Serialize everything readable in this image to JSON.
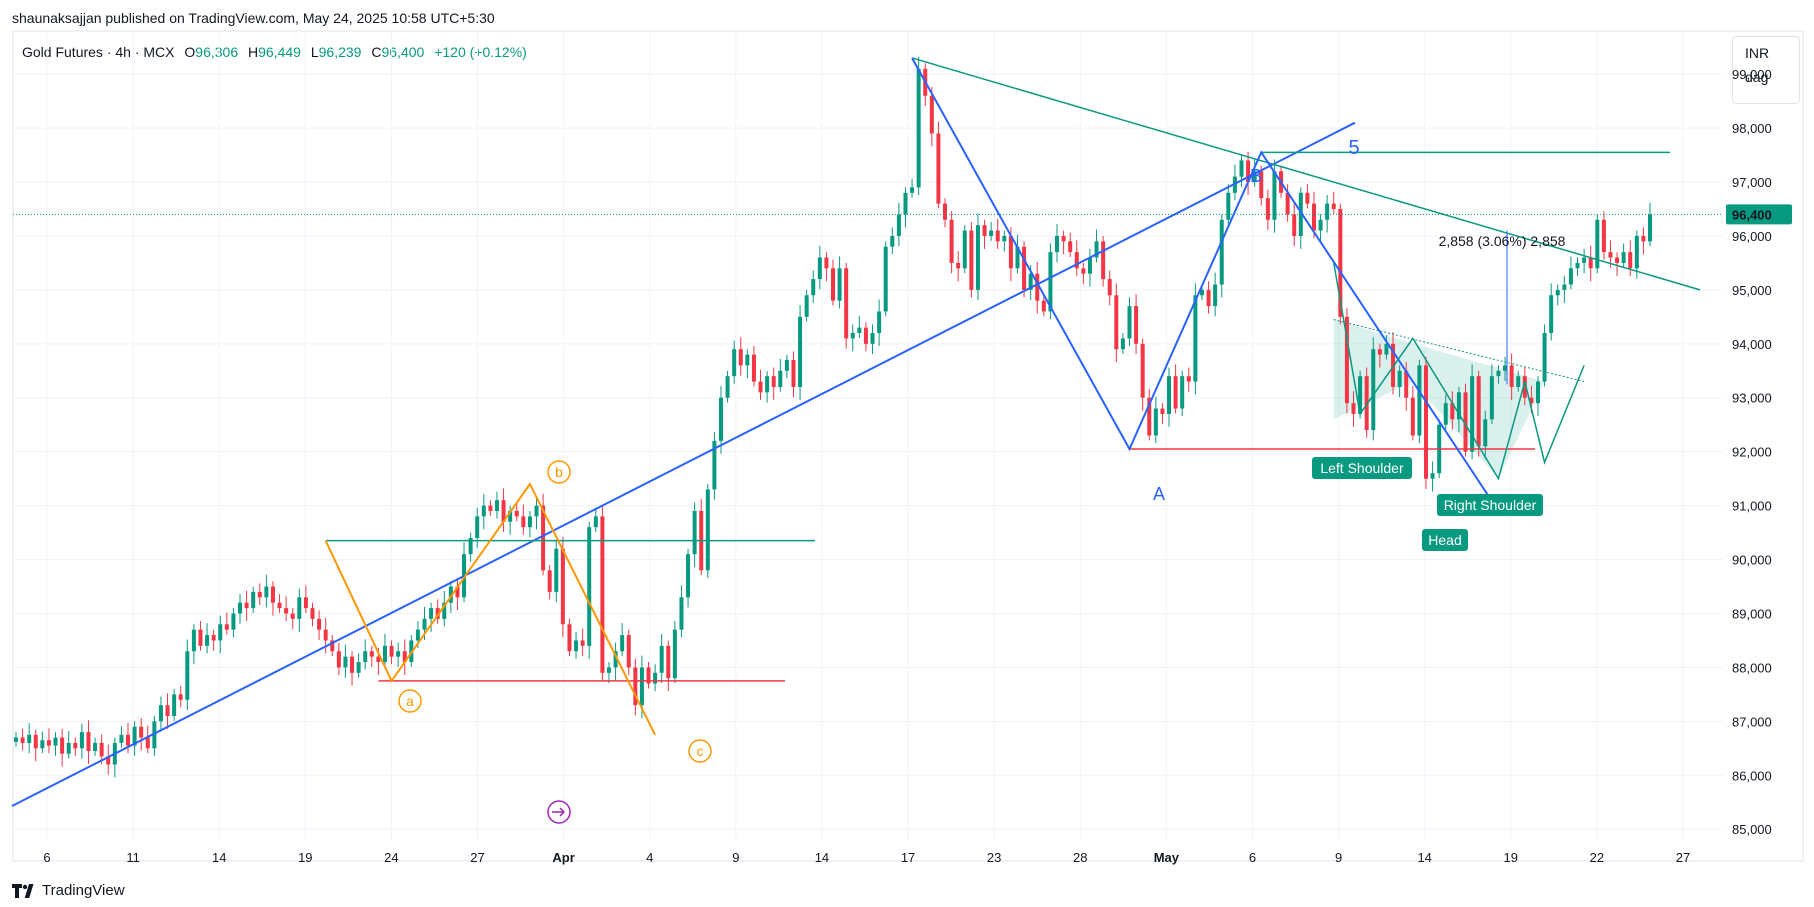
{
  "publisher": "shaunaksajjan published on TradingView.com, May 24, 2025 10:58 UTC+5:30",
  "header": {
    "symbol": "Gold Futures · 4h · MCX",
    "o_label": "O",
    "o": "96,306",
    "h_label": "H",
    "h": "96,449",
    "l_label": "L",
    "l": "96,239",
    "c_label": "C",
    "c": "96,400",
    "change": "+120 (+0.12%)"
  },
  "side": {
    "currency": "INR",
    "unit": "dag"
  },
  "footer": {
    "brand": "TradingView"
  },
  "colors": {
    "up": "#089981",
    "down": "#f23645",
    "blue": "#2962ff",
    "orange": "#ff9800",
    "teal": "#089981"
  },
  "chart_data": {
    "type": "candlestick",
    "ylim": [
      84800,
      99800
    ],
    "y_ticks": [
      85000,
      86000,
      87000,
      88000,
      89000,
      90000,
      91000,
      92000,
      93000,
      94000,
      95000,
      96000,
      97000,
      98000,
      99000
    ],
    "y_tick_labels": [
      "85,000",
      "86,000",
      "87,000",
      "88,000",
      "89,000",
      "90,000",
      "91,000",
      "92,000",
      "93,000",
      "94,000",
      "95,000",
      "96,000",
      "97,000",
      "98,000",
      "99,000"
    ],
    "x_labels": [
      "6",
      "11",
      "14",
      "19",
      "24",
      "27",
      "Apr",
      "4",
      "9",
      "14",
      "17",
      "23",
      "28",
      "May",
      "6",
      "9",
      "14",
      "19",
      "22",
      "27"
    ],
    "last_price_label": "96,400",
    "last_price": 96400,
    "grid": true,
    "closes": [
      86700,
      86600,
      86750,
      86500,
      86650,
      86550,
      86700,
      86400,
      86600,
      86500,
      86800,
      86450,
      86600,
      86350,
      86200,
      86600,
      86750,
      86550,
      86900,
      86700,
      86500,
      87000,
      87300,
      87100,
      87500,
      87400,
      88300,
      88700,
      88400,
      88600,
      88500,
      88800,
      88700,
      89000,
      89200,
      89100,
      89400,
      89300,
      89500,
      89200,
      89100,
      89000,
      88900,
      89300,
      89100,
      88900,
      88700,
      88500,
      88300,
      88000,
      88200,
      87900,
      88100,
      88300,
      88200,
      88100,
      88400,
      88200,
      88300,
      88100,
      88500,
      88700,
      88900,
      89100,
      88900,
      89200,
      89500,
      89300,
      90100,
      90400,
      90800,
      91000,
      90900,
      91100,
      90700,
      90900,
      90800,
      90600,
      90800,
      91000,
      89800,
      89400,
      90200,
      88800,
      88300,
      88500,
      88400,
      90600,
      90800,
      87900,
      88000,
      88300,
      88600,
      88000,
      87300,
      88000,
      87700,
      87900,
      88400,
      87800,
      88700,
      89300,
      90100,
      90900,
      89800,
      91300,
      92200,
      93000,
      93400,
      93900,
      93600,
      93800,
      93300,
      93100,
      93400,
      93200,
      93500,
      93700,
      93200,
      94500,
      94900,
      95200,
      95600,
      95400,
      94800,
      95400,
      94100,
      94200,
      94300,
      94000,
      94200,
      94600,
      95800,
      96000,
      96400,
      96800,
      96900,
      99100,
      98600,
      97900,
      96600,
      96300,
      95500,
      95400,
      96100,
      95000,
      96200,
      96000,
      96100,
      95900,
      96000,
      95400,
      95800,
      95000,
      95300,
      94800,
      94600,
      95700,
      96000,
      95900,
      95700,
      95400,
      95300,
      95600,
      95900,
      95200,
      94900,
      93900,
      94100,
      94700,
      94000,
      93000,
      92300,
      92800,
      92700,
      93400,
      92800,
      93400,
      93300,
      94900,
      95000,
      94700,
      95100,
      96300,
      96800,
      97100,
      97400,
      97000,
      97200,
      96700,
      96300,
      97200,
      96800,
      96400,
      96000,
      96800,
      96600,
      96100,
      96300,
      96600,
      96500,
      94500,
      92900,
      92700,
      93400,
      92400,
      93900,
      93800,
      94000,
      93200,
      93500,
      93000,
      92300,
      93600,
      91500,
      91600,
      92500,
      92900,
      92600,
      93100,
      92000,
      93400,
      92100,
      92600,
      93400,
      93500,
      93600,
      93200,
      93400,
      93000,
      92900,
      93300,
      94200,
      94900,
      95000,
      95100,
      95400,
      95500,
      95600,
      95400,
      96300,
      95700,
      95600,
      95500,
      95700,
      95400,
      96000,
      95900,
      96400
    ]
  },
  "annotations": {
    "wave_a": "a",
    "wave_b": "b",
    "wave_c": "c",
    "wave_A": "A",
    "wave_B": "B",
    "wave_5": "5",
    "left_shoulder": "Left Shoulder",
    "head": "Head",
    "right_shoulder": "Right Shoulder",
    "measure": "2,858 (3.06%) 2,858"
  }
}
